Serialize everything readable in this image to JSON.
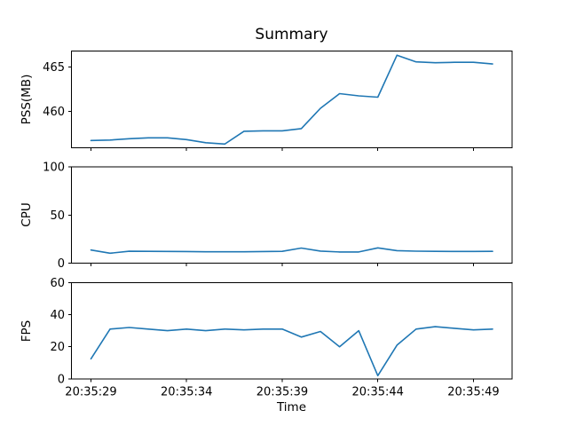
{
  "figure": {
    "title": "Summary",
    "xlabel": "Time",
    "line_color": "#1f77b4",
    "axis_color": "#000000",
    "background_color": "#ffffff"
  },
  "chart_data": [
    {
      "type": "line",
      "name": "pss",
      "ylabel": "PSS(MB)",
      "x": [
        "20:35:29",
        "20:35:30",
        "20:35:31",
        "20:35:32",
        "20:35:33",
        "20:35:34",
        "20:35:35",
        "20:35:36",
        "20:35:37",
        "20:35:38",
        "20:35:39",
        "20:35:40",
        "20:35:41",
        "20:35:42",
        "20:35:43",
        "20:35:44",
        "20:35:45",
        "20:35:46",
        "20:35:47",
        "20:35:48",
        "20:35:49",
        "20:35:50"
      ],
      "values": [
        456.7,
        456.75,
        456.9,
        457.0,
        457.0,
        456.8,
        456.45,
        456.3,
        457.75,
        457.8,
        457.8,
        458.05,
        460.35,
        462.0,
        461.75,
        461.6,
        466.35,
        465.6,
        465.5,
        465.55,
        465.55,
        465.35
      ],
      "ylim": [
        455.9,
        466.8
      ],
      "yticks": [
        460,
        465
      ],
      "xtick_indices": [
        0,
        5,
        10,
        15,
        20
      ],
      "xtick_labels": [
        "20:35:29",
        "20:35:34",
        "20:35:39",
        "20:35:44",
        "20:35:49"
      ],
      "show_xtick_labels": false,
      "grid": false,
      "legend": null
    },
    {
      "type": "line",
      "name": "cpu",
      "ylabel": "CPU",
      "x": [
        "20:35:29",
        "20:35:30",
        "20:35:31",
        "20:35:32",
        "20:35:33",
        "20:35:34",
        "20:35:35",
        "20:35:36",
        "20:35:37",
        "20:35:38",
        "20:35:39",
        "20:35:40",
        "20:35:41",
        "20:35:42",
        "20:35:43",
        "20:35:44",
        "20:35:45",
        "20:35:46",
        "20:35:47",
        "20:35:48",
        "20:35:49",
        "20:35:50"
      ],
      "values": [
        13.8,
        10.5,
        12.5,
        12.4,
        12.3,
        12.2,
        12.0,
        12.0,
        12.0,
        12.2,
        12.4,
        15.8,
        12.7,
        11.8,
        11.8,
        16.0,
        13.2,
        12.6,
        12.4,
        12.3,
        12.3,
        12.4
      ],
      "ylim": [
        0,
        100
      ],
      "yticks": [
        0,
        50,
        100
      ],
      "xtick_indices": [
        0,
        5,
        10,
        15,
        20
      ],
      "xtick_labels": [
        "20:35:29",
        "20:35:34",
        "20:35:39",
        "20:35:44",
        "20:35:49"
      ],
      "show_xtick_labels": false,
      "grid": false,
      "legend": null
    },
    {
      "type": "line",
      "name": "fps",
      "ylabel": "FPS",
      "x": [
        "20:35:29",
        "20:35:30",
        "20:35:31",
        "20:35:32",
        "20:35:33",
        "20:35:34",
        "20:35:35",
        "20:35:36",
        "20:35:37",
        "20:35:38",
        "20:35:39",
        "20:35:40",
        "20:35:41",
        "20:35:42",
        "20:35:43",
        "20:35:44",
        "20:35:45",
        "20:35:46",
        "20:35:47",
        "20:35:48",
        "20:35:49",
        "20:35:50"
      ],
      "values": [
        12.5,
        31,
        32,
        31,
        30,
        31,
        30,
        31,
        30.5,
        31,
        31,
        26,
        29.5,
        20,
        30,
        2,
        21,
        31,
        32.5,
        31.5,
        30.5,
        31
      ],
      "ylim": [
        0,
        60
      ],
      "yticks": [
        0,
        20,
        40,
        60
      ],
      "xtick_indices": [
        0,
        5,
        10,
        15,
        20
      ],
      "xtick_labels": [
        "20:35:29",
        "20:35:34",
        "20:35:39",
        "20:35:44",
        "20:35:49"
      ],
      "show_xtick_labels": true,
      "grid": false,
      "legend": null
    }
  ]
}
